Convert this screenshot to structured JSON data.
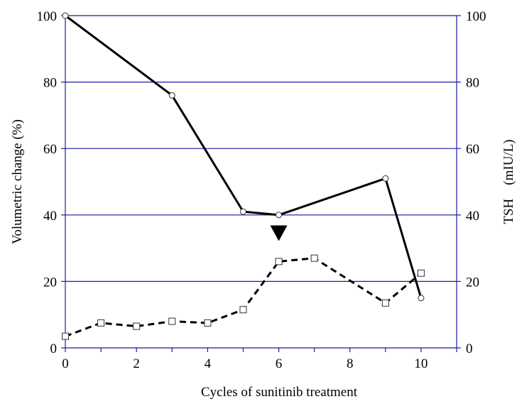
{
  "chart_data": {
    "type": "line",
    "xlabel": "Cycles of sunitinib treatment",
    "ylabel_left": "Volumetric change (%)",
    "ylabel_right": "TSH　(mIU/L)",
    "xlim": [
      0,
      11
    ],
    "ylim_left": [
      0,
      100
    ],
    "ylim_right": [
      0,
      100
    ],
    "x_ticks": [
      "0",
      "2",
      "4",
      "6",
      "8",
      "10"
    ],
    "y_ticks_left": [
      "0",
      "20",
      "40",
      "60",
      "80",
      "100"
    ],
    "y_ticks_right": [
      "0",
      "20",
      "40",
      "60",
      "80",
      "100"
    ],
    "grid": "horizontal",
    "grid_color": "#1a1aa6",
    "series": [
      {
        "axis": "left",
        "style": "solid",
        "marker": "circle",
        "color": "#000000",
        "x": [
          0,
          3,
          5,
          6,
          9,
          10
        ],
        "values": [
          100,
          76,
          41,
          40,
          51,
          15
        ]
      },
      {
        "axis": "right",
        "style": "dashed",
        "marker": "square",
        "color": "#000000",
        "x": [
          0,
          1,
          2,
          3,
          4,
          5,
          6,
          7,
          9,
          10
        ],
        "values": [
          3.5,
          7.5,
          6.5,
          8,
          7.5,
          11.5,
          26,
          27,
          13.5,
          22.5
        ]
      }
    ],
    "annotations": [
      {
        "type": "down-triangle-marker",
        "x": 6,
        "y": 33
      }
    ]
  }
}
